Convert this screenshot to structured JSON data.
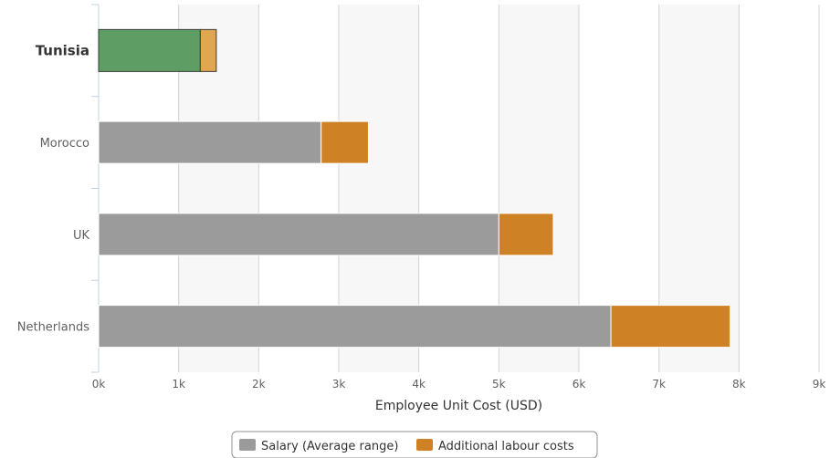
{
  "chart_data": {
    "type": "bar",
    "orientation": "horizontal",
    "stacked": true,
    "title": "",
    "categories": [
      "Tunisia",
      "Morocco",
      "UK",
      "Netherlands"
    ],
    "highlight_category": "Tunisia",
    "highlight_colors": {
      "base": "#5e9e64",
      "top": "#e0a650"
    },
    "series": [
      {
        "name": "Salary (Average range)",
        "color": "#9b9b9b",
        "values": [
          1270,
          2780,
          5000,
          6400
        ]
      },
      {
        "name": "Additional labour costs",
        "color": "#cf8125",
        "values": [
          200,
          590,
          680,
          1490
        ]
      }
    ],
    "xaxis": {
      "label": "Employee Unit Cost (USD)",
      "min": 0,
      "max": 9000,
      "ticks": [
        0,
        1000,
        2000,
        3000,
        4000,
        5000,
        6000,
        7000,
        8000,
        9000
      ],
      "tick_labels": [
        "0k",
        "1k",
        "2k",
        "3k",
        "4k",
        "5k",
        "6k",
        "7k",
        "8k",
        "9k"
      ]
    },
    "grid": true,
    "alternate_bands": true,
    "legend": "bottom-center"
  }
}
